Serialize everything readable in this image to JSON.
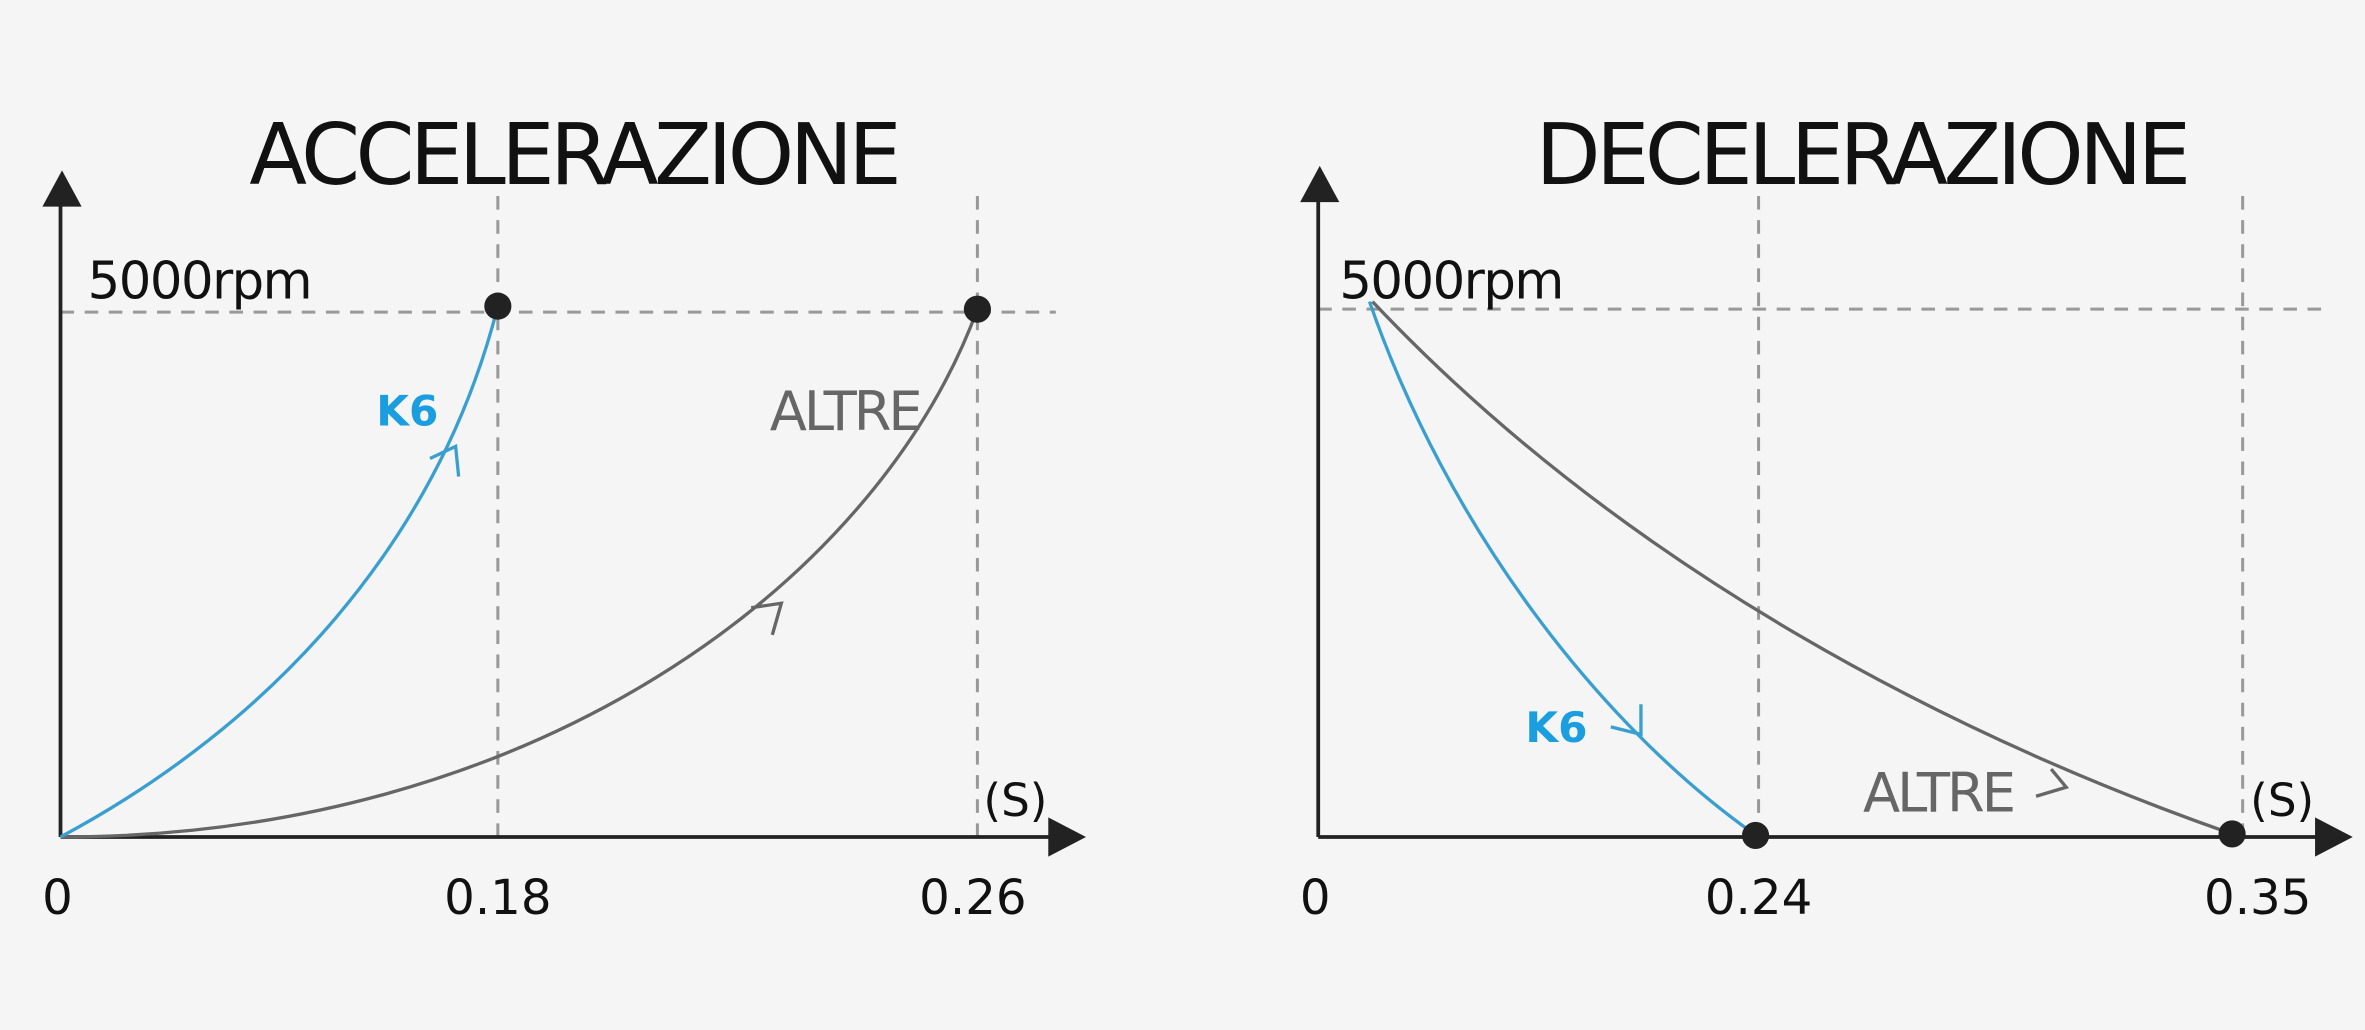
{
  "panels": [
    {
      "title": "ACCELERAZIONE",
      "y_label": "5000rpm",
      "x_unit": "(S)",
      "x_labels": [
        "0",
        "0.18",
        "0.26"
      ],
      "curves": [
        {
          "label": "K6"
        },
        {
          "label": "ALTRE"
        }
      ]
    },
    {
      "title": "DECELERAZIONE",
      "y_label": "5000rpm",
      "x_unit": "(S)",
      "x_labels": [
        "0",
        "0.24",
        "0.35"
      ],
      "curves": [
        {
          "label": "K6"
        },
        {
          "label": "ALTRE"
        }
      ]
    }
  ]
}
